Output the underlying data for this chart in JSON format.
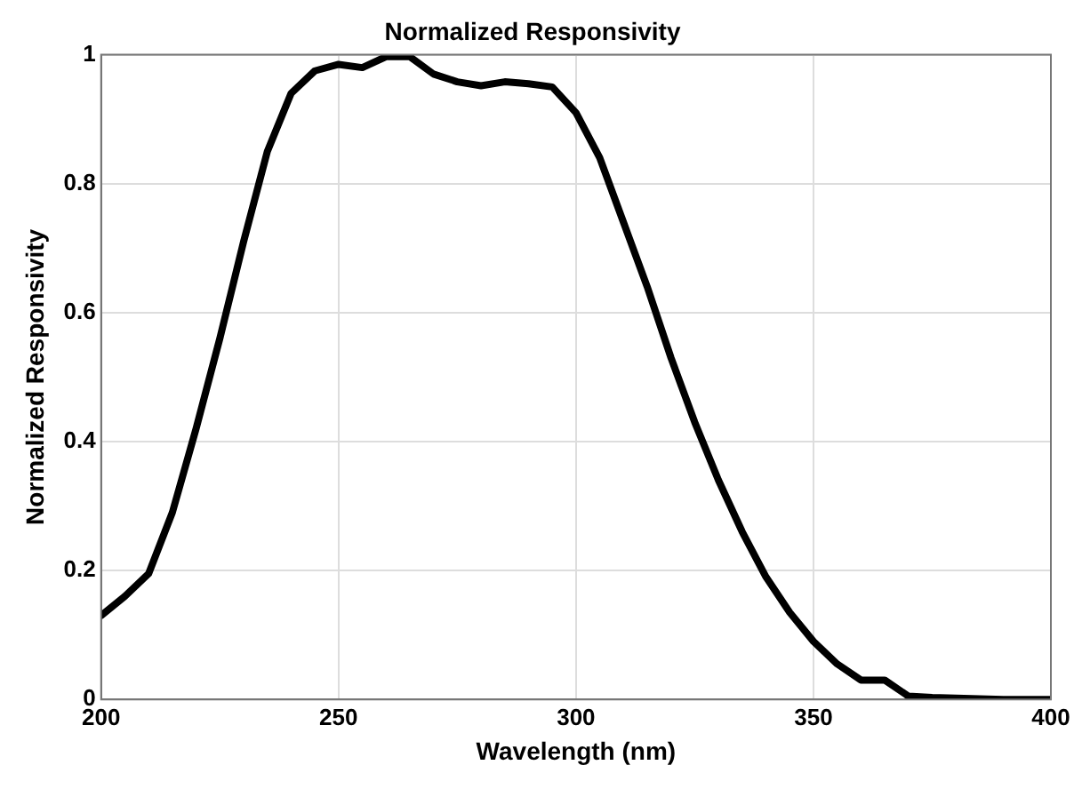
{
  "chart_data": {
    "type": "line",
    "title": "Normalized Responsivity",
    "xlabel": "Wavelength (nm)",
    "ylabel": "Normalized Responsivity",
    "x": [
      200,
      205,
      210,
      215,
      220,
      225,
      230,
      235,
      240,
      245,
      250,
      255,
      260,
      265,
      270,
      275,
      280,
      285,
      290,
      295,
      300,
      305,
      310,
      315,
      320,
      325,
      330,
      335,
      340,
      345,
      350,
      355,
      360,
      365,
      370,
      375,
      380,
      385,
      390,
      395,
      400
    ],
    "series": [
      {
        "color": "#000000",
        "values": [
          0.13,
          0.16,
          0.195,
          0.29,
          0.42,
          0.56,
          0.71,
          0.85,
          0.94,
          0.975,
          0.985,
          0.98,
          0.997,
          0.997,
          0.97,
          0.958,
          0.952,
          0.958,
          0.955,
          0.95,
          0.91,
          0.84,
          0.74,
          0.64,
          0.53,
          0.43,
          0.34,
          0.26,
          0.19,
          0.135,
          0.09,
          0.055,
          0.03,
          0.03,
          0.005,
          0.003,
          0.002,
          0.001,
          0,
          0,
          0
        ]
      }
    ],
    "xlim": [
      200,
      400
    ],
    "xticks": [
      200,
      250,
      300,
      350,
      400
    ],
    "ylim": [
      0,
      1
    ],
    "yticks": [
      0,
      0.2,
      0.4,
      0.6,
      0.8,
      1
    ],
    "grid": true,
    "legend": false,
    "marker": "none",
    "line_style": "solid"
  }
}
